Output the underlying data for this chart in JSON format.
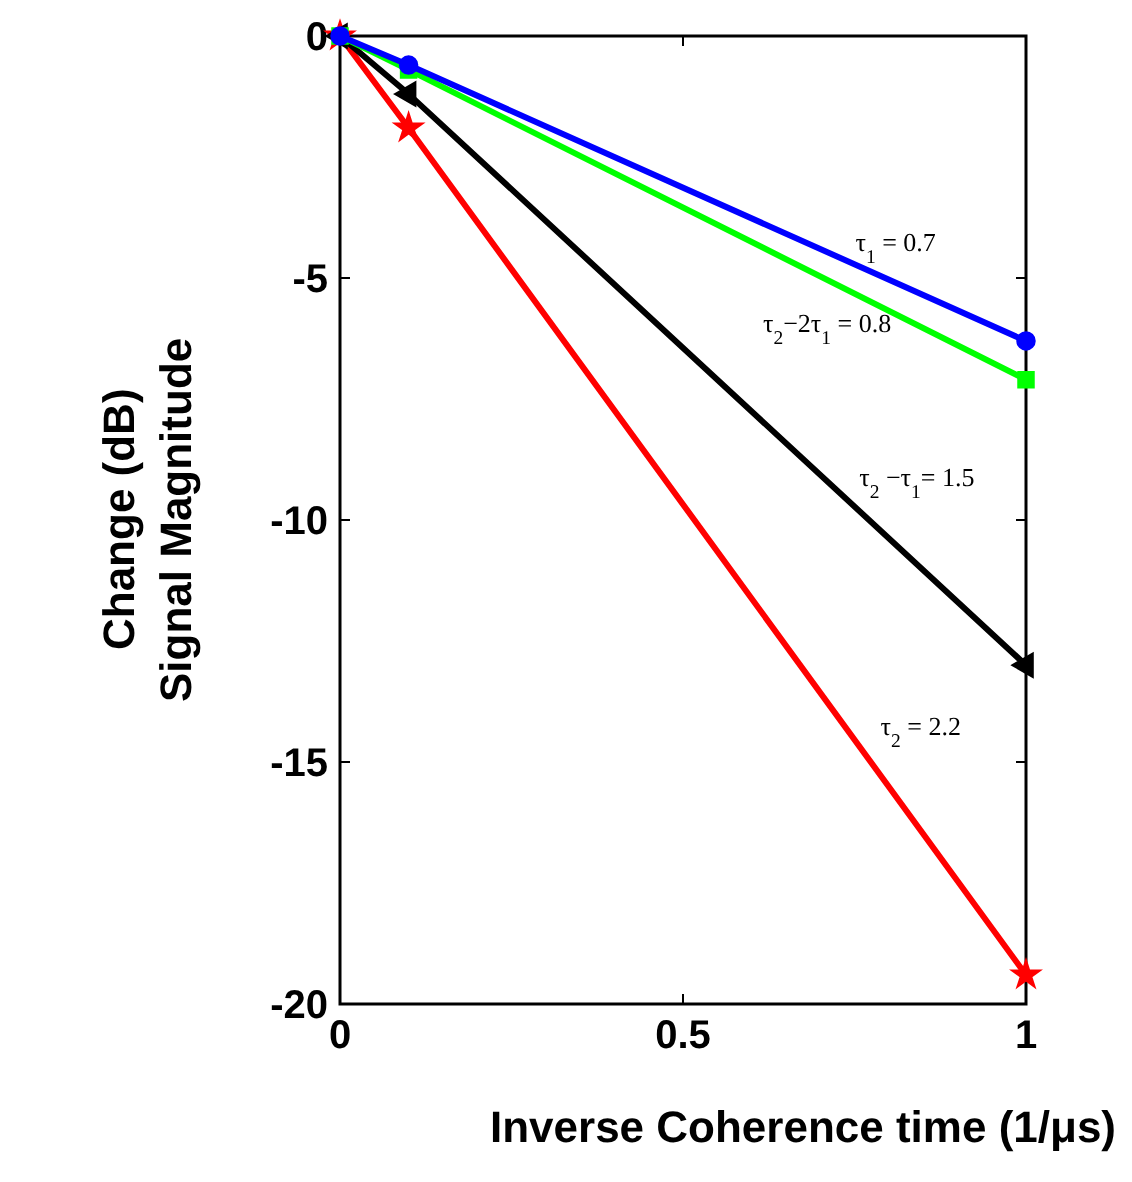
{
  "chart_data": {
    "type": "line",
    "xlabel": "Inverse Coherence time (1/μs)",
    "ylabel": "Signal Magnitude Change (dB)",
    "xlim": [
      0,
      1
    ],
    "ylim": [
      -20,
      0
    ],
    "xticks": [
      0,
      0.5,
      1
    ],
    "yticks": [
      0,
      -5,
      -10,
      -15,
      -20
    ],
    "grid": false,
    "line_style": "solid",
    "x": [
      0,
      0.1,
      1
    ],
    "series": [
      {
        "color": "#0000ff",
        "marker": "circle",
        "values": [
          0,
          -0.6,
          -6.3
        ]
      },
      {
        "color": "#00ff00",
        "marker": "square",
        "values": [
          0,
          -0.7,
          -7.1
        ]
      },
      {
        "color": "#000000",
        "marker": "triangle",
        "values": [
          0,
          -1.2,
          -13.0
        ]
      },
      {
        "color": "#ff0000",
        "marker": "star",
        "values": [
          0,
          -1.9,
          -19.4
        ]
      }
    ],
    "annotations": [
      "τ$_{1}$ = 0.7",
      "τ$_{2}$−2τ$_{1}$ = 0.8",
      "τ$_{2}$ −τ$_{1}$= 1.5",
      "τ$_{2}$ = 2.2"
    ]
  }
}
